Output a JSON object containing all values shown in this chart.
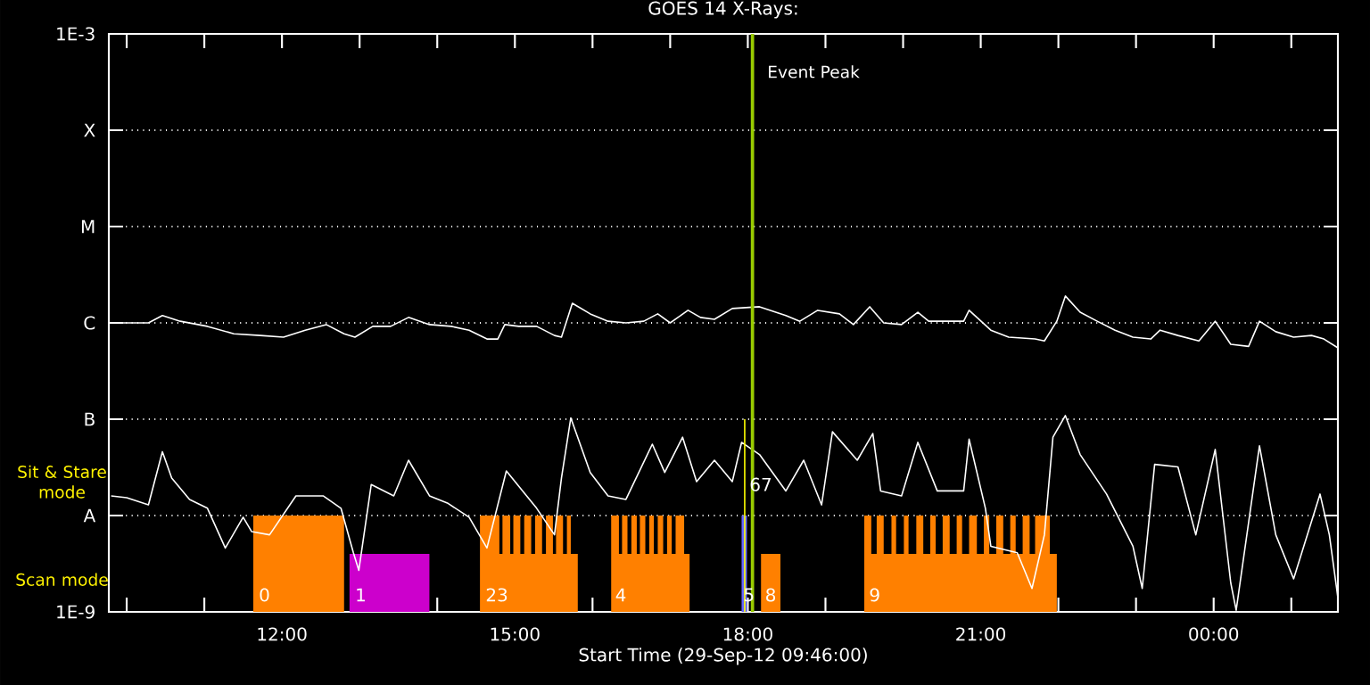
{
  "chart_data": {
    "type": "line",
    "title": "GOES 14 X-Rays:",
    "xlabel": "Start Time (29-Sep-12 09:46:00)",
    "xlim": [
      9.77,
      25.6
    ],
    "ylim": [
      1e-09,
      0.001
    ],
    "log": "y",
    "grid": "y",
    "xticks": [
      {
        "value": 10,
        "label": null
      },
      {
        "value": 11,
        "label": null
      },
      {
        "value": 12,
        "label": "12:00"
      },
      {
        "value": 13,
        "label": null
      },
      {
        "value": 14,
        "label": null
      },
      {
        "value": 15,
        "label": "15:00"
      },
      {
        "value": 16,
        "label": null
      },
      {
        "value": 17,
        "label": null
      },
      {
        "value": 18,
        "label": "18:00"
      },
      {
        "value": 19,
        "label": null
      },
      {
        "value": 20,
        "label": null
      },
      {
        "value": 21,
        "label": "21:00"
      },
      {
        "value": 22,
        "label": null
      },
      {
        "value": 23,
        "label": null
      },
      {
        "value": 24,
        "label": "00:00"
      },
      {
        "value": 25,
        "label": null
      }
    ],
    "yticks": [
      {
        "value": 1e-09,
        "label": "1E-9"
      },
      {
        "value": 1e-08,
        "label": "A"
      },
      {
        "value": 1e-07,
        "label": "B"
      },
      {
        "value": 1e-06,
        "label": "C"
      },
      {
        "value": 1e-05,
        "label": "M"
      },
      {
        "value": 0.0001,
        "label": "X"
      },
      {
        "value": 0.001,
        "label": "1E-3"
      }
    ],
    "series": [
      {
        "type": "area",
        "color": "#ff8000",
        "x": [
          11.63,
          11.63,
          12.8,
          12.8,
          14.55,
          14.55,
          14.8,
          14.8,
          14.84,
          14.84,
          14.94,
          14.94,
          14.98,
          14.98,
          15.07,
          15.07,
          15.12,
          15.12,
          15.21,
          15.21,
          15.26,
          15.26,
          15.35,
          15.35,
          15.4,
          15.4,
          15.49,
          15.49,
          15.53,
          15.53,
          15.62,
          15.62,
          15.67,
          15.67,
          15.72,
          15.72,
          15.81,
          15.81,
          16.24,
          16.24,
          16.34,
          16.34,
          16.38,
          16.38,
          16.45,
          16.45,
          16.5,
          16.5,
          16.57,
          16.57,
          16.61,
          16.61,
          16.68,
          16.68,
          16.73,
          16.73,
          16.79,
          16.79,
          16.84,
          16.84,
          16.91,
          16.91,
          16.96,
          16.96,
          17.02,
          17.02,
          17.07,
          17.07,
          17.18,
          17.18,
          17.25,
          17.25,
          18.17,
          18.17,
          18.42,
          18.42,
          19.5,
          19.5,
          19.59,
          19.59,
          19.66,
          19.66,
          19.75,
          19.75,
          19.85,
          19.85,
          19.91,
          19.91,
          20.01,
          20.01,
          20.07,
          20.07,
          20.17,
          20.17,
          20.26,
          20.26,
          20.35,
          20.35,
          20.42,
          20.42,
          20.51,
          20.51,
          20.6,
          20.6,
          20.69,
          20.69,
          20.76,
          20.76,
          20.85,
          20.85,
          20.95,
          20.95,
          21.04,
          21.04,
          21.11,
          21.11,
          21.2,
          21.2,
          21.29,
          21.29,
          21.38,
          21.38,
          21.45,
          21.45,
          21.54,
          21.54,
          21.63,
          21.63,
          21.7,
          21.7,
          21.89,
          21.89,
          21.98,
          21.98
        ],
        "values": [
          1e-09,
          1e-08,
          1e-08,
          1e-09,
          1e-09,
          1e-08,
          1e-08,
          4e-09,
          4e-09,
          1e-08,
          1e-08,
          4e-09,
          4e-09,
          1e-08,
          1e-08,
          4e-09,
          4e-09,
          1e-08,
          1e-08,
          4e-09,
          4e-09,
          1e-08,
          1e-08,
          4e-09,
          4e-09,
          1e-08,
          1e-08,
          4e-09,
          4e-09,
          1e-08,
          1e-08,
          4e-09,
          4e-09,
          1e-08,
          1e-08,
          4e-09,
          4e-09,
          1e-09,
          1e-09,
          1e-08,
          1e-08,
          4e-09,
          4e-09,
          1e-08,
          1e-08,
          4e-09,
          4e-09,
          1e-08,
          1e-08,
          4e-09,
          4e-09,
          1e-08,
          1e-08,
          4e-09,
          4e-09,
          1e-08,
          1e-08,
          4e-09,
          4e-09,
          1e-08,
          1e-08,
          4e-09,
          4e-09,
          1e-08,
          1e-08,
          4e-09,
          4e-09,
          1e-08,
          1e-08,
          4e-09,
          4e-09,
          1e-09,
          1e-09,
          4e-09,
          4e-09,
          1e-09,
          1e-09,
          1e-08,
          1e-08,
          4e-09,
          4e-09,
          1e-08,
          1e-08,
          4e-09,
          4e-09,
          1e-08,
          1e-08,
          4e-09,
          4e-09,
          1e-08,
          1e-08,
          4e-09,
          4e-09,
          1e-08,
          1e-08,
          4e-09,
          4e-09,
          1e-08,
          1e-08,
          4e-09,
          4e-09,
          1e-08,
          1e-08,
          4e-09,
          4e-09,
          1e-08,
          1e-08,
          4e-09,
          4e-09,
          1e-08,
          1e-08,
          4e-09,
          4e-09,
          1e-08,
          1e-08,
          4e-09,
          4e-09,
          1e-08,
          1e-08,
          4e-09,
          4e-09,
          1e-08,
          1e-08,
          4e-09,
          4e-09,
          1e-08,
          1e-08,
          4e-09,
          4e-09,
          1e-08,
          1e-08,
          4e-09,
          4e-09,
          1e-09
        ]
      },
      {
        "type": "area",
        "color": "#cc00cc",
        "x": [
          12.87,
          12.87,
          13.9,
          13.9
        ],
        "values": [
          1e-09,
          4e-09,
          4e-09,
          1e-09
        ]
      },
      {
        "type": "area",
        "color": "#6666ff",
        "x": [
          17.92,
          17.92,
          17.99,
          17.99
        ],
        "values": [
          1e-09,
          1e-08,
          1e-08,
          1e-09
        ]
      },
      {
        "type": "line",
        "color": "#ffffff",
        "x": [
          9.8,
          10.28,
          10.46,
          10.69,
          11.04,
          11.38,
          11.72,
          12.02,
          12.3,
          12.57,
          12.8,
          12.94,
          13.17,
          13.4,
          13.63,
          13.9,
          14.18,
          14.41,
          14.64,
          14.78,
          14.87,
          15.05,
          15.28,
          15.51,
          15.6,
          15.74,
          15.97,
          16.2,
          16.43,
          16.66,
          16.84,
          17.0,
          17.23,
          17.39,
          17.57,
          17.8,
          18.15,
          18.49,
          18.67,
          18.9,
          19.18,
          19.36,
          19.57,
          19.75,
          19.98,
          20.19,
          20.33,
          20.78,
          20.85,
          21.13,
          21.36,
          21.7,
          21.82,
          21.98,
          22.09,
          22.28,
          22.5,
          22.73,
          22.96,
          23.19,
          23.31,
          23.54,
          23.81,
          24.02,
          24.22,
          24.45,
          24.59,
          24.8,
          25.03,
          25.26,
          25.42,
          25.6
        ],
        "values": [
          1e-06,
          1e-06,
          1.19e-06,
          1.04e-06,
          9.2e-07,
          7.7e-07,
          7.4e-07,
          7.1e-07,
          8.4e-07,
          9.6e-07,
          7.7e-07,
          7.1e-07,
          9.2e-07,
          9.2e-07,
          1.14e-06,
          9.6e-07,
          9.2e-07,
          8.4e-07,
          6.8e-07,
          6.8e-07,
          9.6e-07,
          9.2e-07,
          9.2e-07,
          7.4e-07,
          7.1e-07,
          1.6e-06,
          1.24e-06,
          1.04e-06,
          1e-06,
          1.04e-06,
          1.24e-06,
          1e-06,
          1.35e-06,
          1.14e-06,
          1.09e-06,
          1.41e-06,
          1.47e-06,
          1.19e-06,
          1.04e-06,
          1.35e-06,
          1.24e-06,
          9.6e-07,
          1.47e-06,
          1e-06,
          9.6e-07,
          1.29e-06,
          1.04e-06,
          1.04e-06,
          1.35e-06,
          8.4e-07,
          7.1e-07,
          6.8e-07,
          6.5e-07,
          1.04e-06,
          1.9e-06,
          1.29e-06,
          1.04e-06,
          8.4e-07,
          7.1e-07,
          6.8e-07,
          8.4e-07,
          7.4e-07,
          6.5e-07,
          1.04e-06,
          6e-07,
          5.7e-07,
          1.04e-06,
          8.1e-07,
          7.1e-07,
          7.4e-07,
          6.8e-07,
          5.5e-07
        ]
      },
      {
        "type": "line",
        "color": "#ffffff",
        "x": [
          9.8,
          10.0,
          10.28,
          10.46,
          10.58,
          10.81,
          11.04,
          11.27,
          11.5,
          11.61,
          11.84,
          12.18,
          12.53,
          12.76,
          12.92,
          12.99,
          13.15,
          13.44,
          13.63,
          13.9,
          14.13,
          14.41,
          14.64,
          14.89,
          15.1,
          15.28,
          15.51,
          15.6,
          15.72,
          15.97,
          16.2,
          16.43,
          16.77,
          16.93,
          17.16,
          17.34,
          17.57,
          17.8,
          17.92,
          18.15,
          18.49,
          18.72,
          18.95,
          19.09,
          19.41,
          19.61,
          19.71,
          19.98,
          20.19,
          20.44,
          20.78,
          20.85,
          21.06,
          21.13,
          21.47,
          21.66,
          21.82,
          21.93,
          22.09,
          22.28,
          22.62,
          22.96,
          23.08,
          23.24,
          23.54,
          23.77,
          24.02,
          24.22,
          24.29,
          24.59,
          24.8,
          25.03,
          25.37,
          25.49,
          25.6
        ],
        "values": [
          1.6e-08,
          1.53e-08,
          1.29e-08,
          4.6e-08,
          2.45e-08,
          1.47e-08,
          1.19e-08,
          4.6e-09,
          9.6e-09,
          6.8e-09,
          6.3e-09,
          1.6e-08,
          1.6e-08,
          1.19e-08,
          4.1e-09,
          2.7e-09,
          2.1e-08,
          1.6e-08,
          3.75e-08,
          1.6e-08,
          1.35e-08,
          9.6e-09,
          4.6e-09,
          2.9e-08,
          1.8e-08,
          1.19e-08,
          6.3e-09,
          2.45e-08,
          1.03e-07,
          2.8e-08,
          1.6e-08,
          1.47e-08,
          5.5e-08,
          2.8e-08,
          6.5e-08,
          2.25e-08,
          3.75e-08,
          2.25e-08,
          5.75e-08,
          4.3e-08,
          1.8e-08,
          3.75e-08,
          1.29e-08,
          7.4e-08,
          3.75e-08,
          7.1e-08,
          1.8e-08,
          1.6e-08,
          5.75e-08,
          1.8e-08,
          1.8e-08,
          6.2e-08,
          1.19e-08,
          4.8e-09,
          4.1e-09,
          1.75e-09,
          6.3e-09,
          6.5e-08,
          1.09e-07,
          4.3e-08,
          1.67e-08,
          4.8e-09,
          1.75e-09,
          3.4e-08,
          3.2e-08,
          6.3e-09,
          4.85e-08,
          2e-09,
          1.04e-09,
          5.3e-08,
          6.3e-09,
          2.2e-09,
          1.67e-08,
          6.3e-09,
          1.4e-09
        ]
      },
      {
        "type": "line",
        "color": "#ffff00",
        "x": [
          17.96,
          17.96
        ],
        "values": [
          1e-07,
          1e-09
        ]
      }
    ],
    "ref_lines": [
      {
        "axis": "x",
        "value": 18.06,
        "label": "Event Peak",
        "color": "#99cc00"
      }
    ],
    "annotations": [
      "Sit & Stare mode",
      "Scan mode",
      {
        "text": "0",
        "x": 11.68,
        "y": 1.5e-09
      },
      {
        "text": "1",
        "x": 12.92,
        "y": 1.5e-09
      },
      {
        "text": "23",
        "x": 14.6,
        "y": 1.5e-09
      },
      {
        "text": "4",
        "x": 16.27,
        "y": 1.5e-09
      },
      {
        "text": "5",
        "x": 17.92,
        "y": 1.5e-09
      },
      {
        "text": "8",
        "x": 18.2,
        "y": 1.5e-09
      },
      {
        "text": "9",
        "x": 19.54,
        "y": 1.5e-09
      },
      {
        "text": "67",
        "x": 18.0,
        "y": 2.1e-08
      }
    ]
  }
}
